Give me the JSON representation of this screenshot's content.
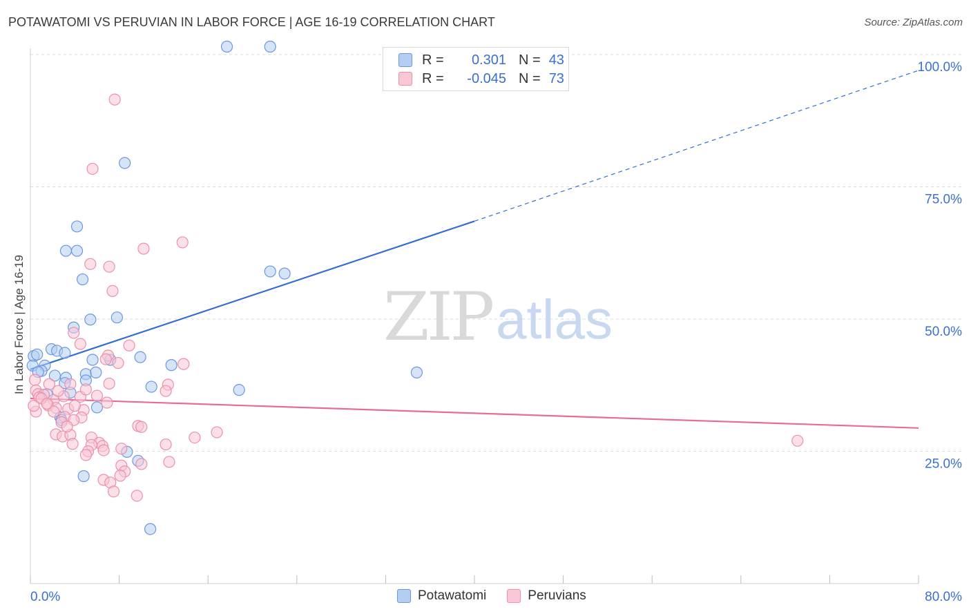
{
  "title": "POTAWATOMI VS PERUVIAN IN LABOR FORCE | AGE 16-19 CORRELATION CHART",
  "source": "Source: ZipAtlas.com",
  "watermark": {
    "zip": "ZIP",
    "atlas": "atlas"
  },
  "legend": {
    "rows": [
      {
        "r_label": "R =",
        "r_value": "0.301",
        "n_label": "N =",
        "n_value": "43"
      },
      {
        "r_label": "R =",
        "r_value": "-0.045",
        "n_label": "N =",
        "n_value": "73"
      }
    ]
  },
  "bottom_legend": [
    "Potawatomi",
    "Peruvians"
  ],
  "colors": {
    "blue_fill": "#b4cdf2",
    "blue_stroke": "#6b97dd",
    "blue_line": "#2f6fd0",
    "pink_fill": "#f8c6d5",
    "pink_stroke": "#ec8fab",
    "pink_line": "#e8699a",
    "tick_label": "#3a6fd1",
    "grid": "#d9d9d9"
  },
  "chart_data": {
    "type": "scatter",
    "xlabel": "",
    "ylabel": "In Labor Force | Age 16-19",
    "xlim": [
      0,
      80
    ],
    "ylim": [
      0,
      105
    ],
    "x_tick_labels": [
      {
        "value": 0,
        "label": "0.0%"
      },
      {
        "value": 80,
        "label": "80.0%"
      }
    ],
    "y_tick_labels": [
      {
        "value": 25,
        "label": "25.0%"
      },
      {
        "value": 50,
        "label": "50.0%"
      },
      {
        "value": 75,
        "label": "75.0%"
      },
      {
        "value": 100,
        "label": "100.0%"
      }
    ],
    "series": [
      {
        "name": "Potawatomi",
        "color": "blue",
        "points": [
          [
            17.7,
            101.5
          ],
          [
            21.6,
            101.5
          ],
          [
            8.5,
            79.5
          ],
          [
            4.2,
            67.5
          ],
          [
            3.2,
            62.9
          ],
          [
            4.2,
            62.9
          ],
          [
            4.7,
            57.5
          ],
          [
            21.6,
            59.0
          ],
          [
            22.9,
            58.6
          ],
          [
            7.8,
            50.3
          ],
          [
            5.4,
            49.9
          ],
          [
            3.9,
            48.4
          ],
          [
            0.3,
            43.0
          ],
          [
            0.6,
            43.3
          ],
          [
            1.9,
            44.3
          ],
          [
            2.4,
            44.0
          ],
          [
            3.1,
            43.6
          ],
          [
            9.9,
            42.8
          ],
          [
            7.2,
            42.3
          ],
          [
            5.6,
            42.3
          ],
          [
            0.2,
            41.2
          ],
          [
            1.3,
            41.2
          ],
          [
            1.0,
            40.2
          ],
          [
            2.2,
            39.3
          ],
          [
            5.0,
            39.6
          ],
          [
            5.9,
            39.9
          ],
          [
            12.7,
            41.3
          ],
          [
            34.8,
            39.9
          ],
          [
            3.2,
            38.9
          ],
          [
            5.0,
            38.4
          ],
          [
            10.9,
            37.2
          ],
          [
            18.8,
            36.6
          ],
          [
            1.5,
            35.8
          ],
          [
            3.6,
            36.1
          ],
          [
            6.0,
            33.3
          ],
          [
            2.7,
            31.4
          ],
          [
            2.8,
            30.9
          ],
          [
            8.7,
            24.9
          ],
          [
            9.7,
            23.2
          ],
          [
            4.8,
            20.3
          ],
          [
            10.8,
            10.3
          ],
          [
            0.7,
            40.0
          ],
          [
            3.1,
            37.9
          ]
        ]
      },
      {
        "name": "Peruvians",
        "color": "pink",
        "points": [
          [
            7.6,
            91.5
          ],
          [
            5.6,
            78.4
          ],
          [
            13.7,
            64.5
          ],
          [
            10.2,
            63.3
          ],
          [
            5.4,
            60.4
          ],
          [
            7.1,
            59.9
          ],
          [
            7.4,
            55.3
          ],
          [
            3.9,
            47.4
          ],
          [
            4.5,
            45.3
          ],
          [
            8.9,
            45.0
          ],
          [
            7.0,
            43.1
          ],
          [
            6.8,
            42.4
          ],
          [
            7.9,
            41.7
          ],
          [
            13.8,
            41.5
          ],
          [
            0.4,
            38.5
          ],
          [
            1.7,
            37.7
          ],
          [
            3.6,
            37.7
          ],
          [
            7.1,
            37.8
          ],
          [
            12.4,
            37.6
          ],
          [
            12.2,
            36.4
          ],
          [
            0.5,
            36.5
          ],
          [
            0.7,
            35.8
          ],
          [
            1.2,
            35.7
          ],
          [
            0.8,
            35.2
          ],
          [
            2.1,
            34.7
          ],
          [
            3.0,
            35.4
          ],
          [
            4.5,
            35.3
          ],
          [
            6.9,
            34.2
          ],
          [
            1.6,
            33.7
          ],
          [
            2.3,
            33.2
          ],
          [
            3.4,
            33.0
          ],
          [
            4.8,
            32.8
          ],
          [
            0.5,
            32.5
          ],
          [
            2.1,
            32.5
          ],
          [
            3.1,
            31.5
          ],
          [
            4.6,
            31.4
          ],
          [
            3.9,
            30.9
          ],
          [
            2.8,
            30.5
          ],
          [
            9.7,
            29.8
          ],
          [
            10.0,
            29.6
          ],
          [
            16.8,
            28.6
          ],
          [
            2.3,
            28.2
          ],
          [
            2.9,
            27.8
          ],
          [
            3.6,
            28.1
          ],
          [
            5.5,
            27.6
          ],
          [
            14.8,
            27.6
          ],
          [
            6.2,
            26.6
          ],
          [
            12.2,
            26.3
          ],
          [
            3.8,
            26.4
          ],
          [
            5.5,
            26.2
          ],
          [
            6.5,
            26.0
          ],
          [
            8.2,
            25.5
          ],
          [
            6.6,
            25.2
          ],
          [
            5.2,
            25.0
          ],
          [
            5.0,
            24.3
          ],
          [
            12.5,
            23.0
          ],
          [
            10.0,
            22.6
          ],
          [
            8.2,
            22.3
          ],
          [
            8.5,
            21.2
          ],
          [
            8.1,
            20.4
          ],
          [
            6.6,
            19.6
          ],
          [
            7.2,
            19.1
          ],
          [
            7.5,
            17.4
          ],
          [
            9.6,
            16.6
          ],
          [
            1.0,
            35.0
          ],
          [
            1.5,
            34.0
          ],
          [
            6.0,
            35.5
          ],
          [
            2.5,
            36.4
          ],
          [
            4.0,
            33.6
          ],
          [
            5.0,
            36.7
          ],
          [
            3.3,
            29.7
          ],
          [
            69.1,
            27.0
          ],
          [
            0.3,
            33.6
          ]
        ]
      }
    ],
    "trend_lines": [
      {
        "series": "Potawatomi",
        "solid_from": [
          0,
          40.5
        ],
        "solid_to": [
          40,
          68.5
        ],
        "dashed_to": [
          80,
          97.0
        ]
      },
      {
        "series": "Peruvians",
        "solid_from": [
          0,
          35.0
        ],
        "solid_to": [
          80,
          29.4
        ]
      }
    ]
  }
}
